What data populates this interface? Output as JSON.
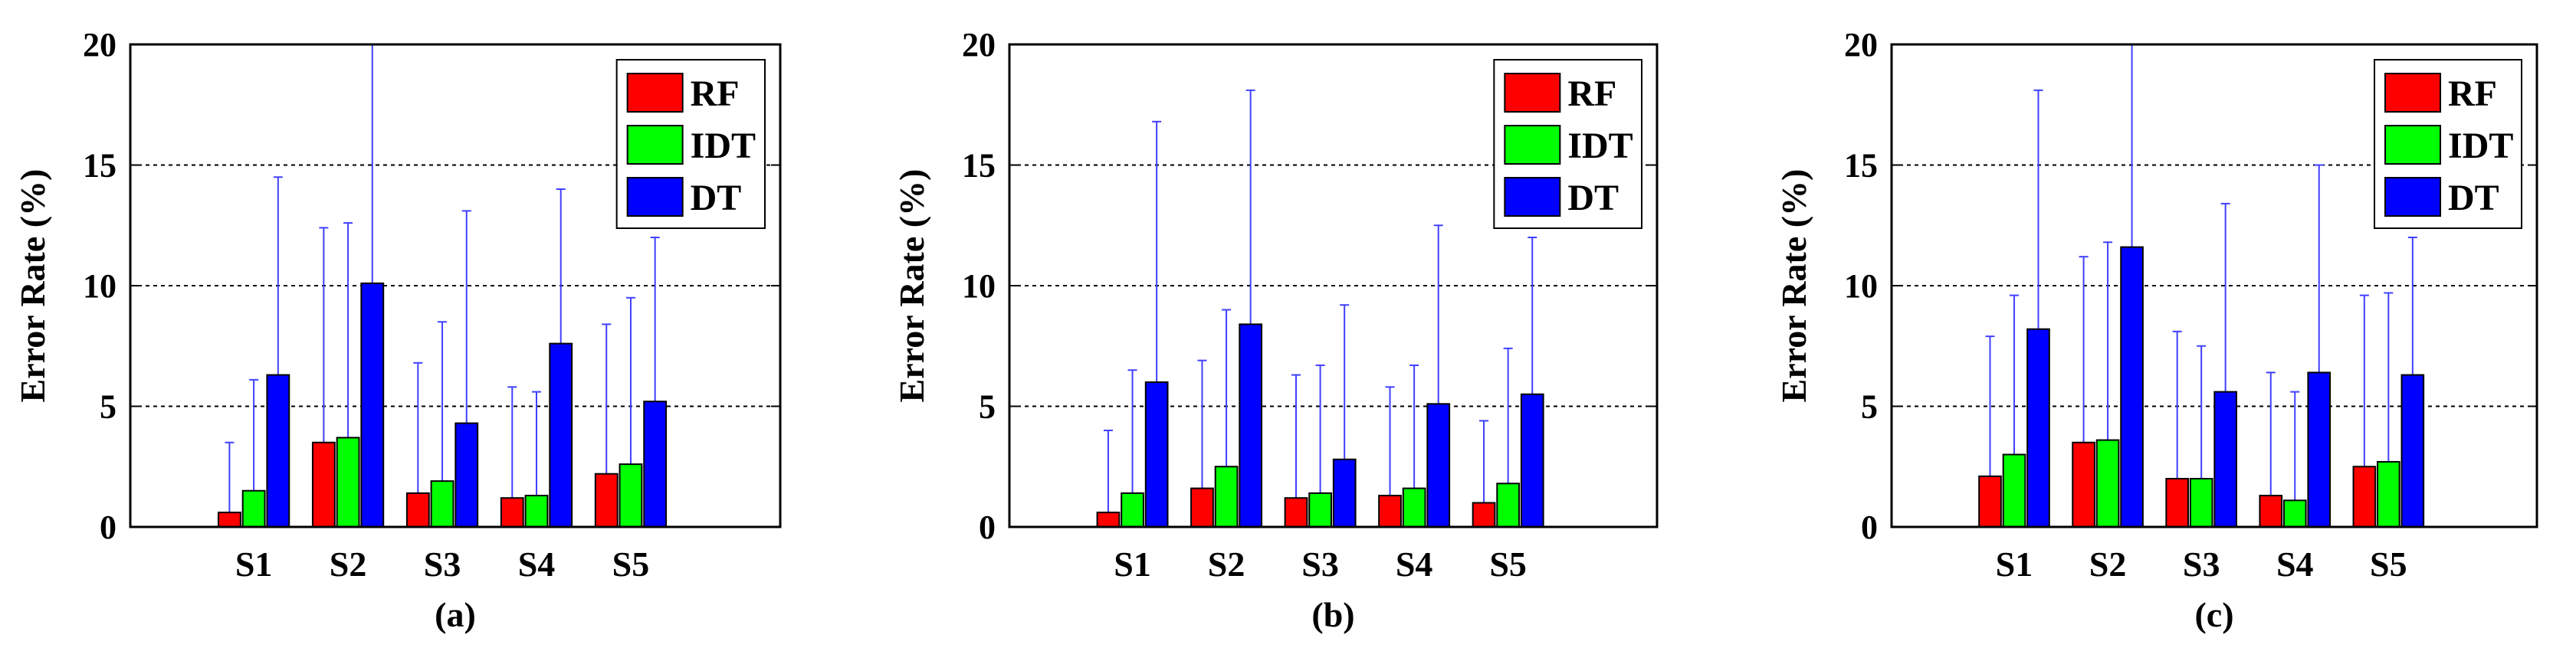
{
  "chart_data": [
    {
      "type": "bar",
      "panel_label": "(a)",
      "ylabel": "Error Rate (%)",
      "ylim": [
        0,
        20
      ],
      "yticks": [
        "0",
        "5",
        "10",
        "15",
        "20"
      ],
      "grid": "horizontal dashed at 5, 10, 15",
      "legend_position": "top-right",
      "categories": [
        "S1",
        "S2",
        "S3",
        "S4",
        "S5"
      ],
      "series": [
        {
          "name": "RF",
          "color": "#ff0000",
          "values": [
            0.6,
            3.5,
            1.4,
            1.2,
            2.2
          ],
          "error_upper": [
            3.5,
            12.4,
            6.8,
            5.8,
            8.4
          ]
        },
        {
          "name": "IDT",
          "color": "#00ff00",
          "values": [
            1.5,
            3.7,
            1.9,
            1.3,
            2.6
          ],
          "error_upper": [
            6.1,
            12.6,
            8.5,
            5.6,
            9.5
          ]
        },
        {
          "name": "DT",
          "color": "#0000ff",
          "values": [
            6.3,
            10.1,
            4.3,
            7.6,
            5.2
          ],
          "error_upper": [
            14.5,
            20,
            13.1,
            14.0,
            12.0
          ]
        }
      ]
    },
    {
      "type": "bar",
      "panel_label": "(b)",
      "ylabel": "Error Rate (%)",
      "ylim": [
        0,
        20
      ],
      "yticks": [
        "0",
        "5",
        "10",
        "15",
        "20"
      ],
      "grid": "horizontal dashed at 5, 10, 15",
      "legend_position": "top-right",
      "categories": [
        "S1",
        "S2",
        "S3",
        "S4",
        "S5"
      ],
      "series": [
        {
          "name": "RF",
          "color": "#ff0000",
          "values": [
            0.6,
            1.6,
            1.2,
            1.3,
            1.0
          ],
          "error_upper": [
            4.0,
            6.9,
            6.3,
            5.8,
            4.4
          ]
        },
        {
          "name": "IDT",
          "color": "#00ff00",
          "values": [
            1.4,
            2.5,
            1.4,
            1.6,
            1.8
          ],
          "error_upper": [
            6.5,
            9.0,
            6.7,
            6.7,
            7.4
          ]
        },
        {
          "name": "DT",
          "color": "#0000ff",
          "values": [
            6.0,
            8.4,
            2.8,
            5.1,
            5.5
          ],
          "error_upper": [
            16.8,
            18.1,
            9.2,
            12.5,
            12.0
          ]
        }
      ]
    },
    {
      "type": "bar",
      "panel_label": "(c)",
      "ylabel": "Error Rate (%)",
      "ylim": [
        0,
        20
      ],
      "yticks": [
        "0",
        "5",
        "10",
        "15",
        "20"
      ],
      "grid": "horizontal dashed at 5, 10, 15",
      "legend_position": "top-right",
      "categories": [
        "S1",
        "S2",
        "S3",
        "S4",
        "S5"
      ],
      "series": [
        {
          "name": "RF",
          "color": "#ff0000",
          "values": [
            2.1,
            3.5,
            2.0,
            1.3,
            2.5
          ],
          "error_upper": [
            7.9,
            11.2,
            8.1,
            6.4,
            9.6
          ]
        },
        {
          "name": "IDT",
          "color": "#00ff00",
          "values": [
            3.0,
            3.6,
            2.0,
            1.1,
            2.7
          ],
          "error_upper": [
            9.6,
            11.8,
            7.5,
            5.6,
            9.7
          ]
        },
        {
          "name": "DT",
          "color": "#0000ff",
          "values": [
            8.2,
            11.6,
            5.6,
            6.4,
            6.3
          ],
          "error_upper": [
            18.1,
            20,
            13.4,
            15.0,
            12.0
          ]
        }
      ]
    }
  ]
}
